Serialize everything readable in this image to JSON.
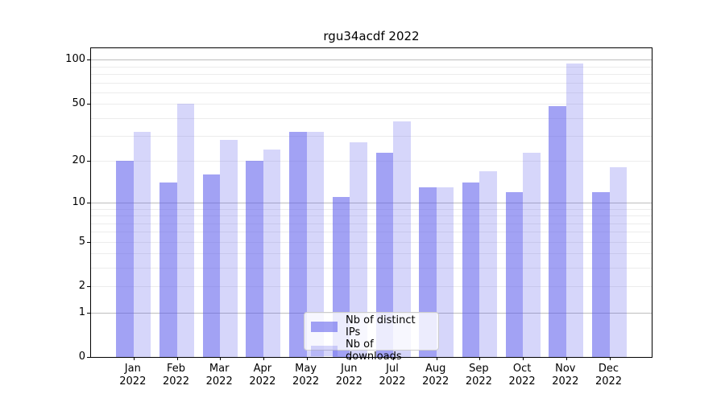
{
  "title": "rgu34acdf 2022",
  "chart_data": {
    "type": "bar",
    "title": "rgu34acdf 2022",
    "categories": [
      "Jan",
      "Feb",
      "Mar",
      "Apr",
      "May",
      "Jun",
      "Jul",
      "Aug",
      "Sep",
      "Oct",
      "Nov",
      "Dec"
    ],
    "x_tick_second_line": "2022",
    "series": [
      {
        "name": "Nb of distinct IPs",
        "color": "#5A5AEB",
        "alpha": 0.56,
        "values": [
          20,
          14,
          16,
          20,
          32,
          11,
          23,
          13,
          14,
          12,
          48,
          12
        ]
      },
      {
        "name": "Nb of downloads",
        "color": "#5A5AEB",
        "alpha": 0.25,
        "values": [
          32,
          50,
          28,
          24,
          32,
          27,
          38,
          13,
          17,
          23,
          95,
          18
        ]
      }
    ],
    "y_scale": "log10(1+v)",
    "ylim": [
      0,
      120
    ],
    "y_ticks_labeled": [
      100,
      50,
      20,
      10,
      5,
      2,
      1,
      0
    ],
    "y_gridlines_major": [
      1,
      10,
      100
    ],
    "y_gridlines_minor": [
      2,
      3,
      4,
      5,
      6,
      7,
      8,
      9,
      20,
      30,
      40,
      50,
      60,
      70,
      80,
      90
    ],
    "grid": "on",
    "grid_major_color": "#bdbdbd",
    "grid_minor_color": "#ececec",
    "axis_color": "#000000",
    "legend_position": "inside-bottom-center"
  }
}
